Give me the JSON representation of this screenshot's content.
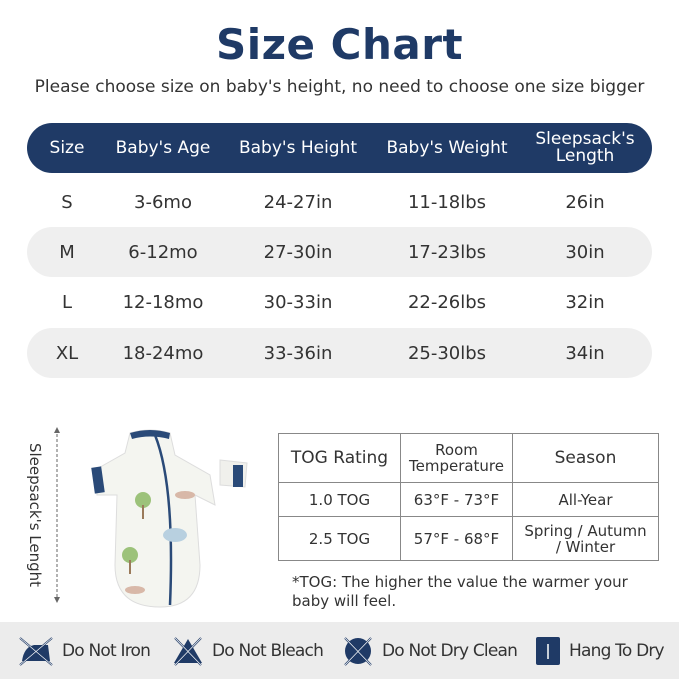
{
  "title": "Size Chart",
  "subtitle": "Please choose size on baby's height, no need to choose one size bigger",
  "size_table": {
    "headers": [
      "Size",
      "Baby's Age",
      "Baby's Height",
      "Baby's Weight",
      "Sleepsack's Length"
    ],
    "rows": [
      [
        "S",
        "3-6mo",
        "24-27in",
        "11-18lbs",
        "26in"
      ],
      [
        "M",
        "6-12mo",
        "27-30in",
        "17-23lbs",
        "30in"
      ],
      [
        "L",
        "12-18mo",
        "30-33in",
        "22-26lbs",
        "32in"
      ],
      [
        "XL",
        "18-24mo",
        "33-36in",
        "25-30lbs",
        "34in"
      ]
    ]
  },
  "measure_label": "Sleepsack's Lenght",
  "tog_table": {
    "headers": [
      "TOG Rating",
      "Room Temperature",
      "Season"
    ],
    "rows": [
      [
        "1.0 TOG",
        "63°F - 73°F",
        "All-Year"
      ],
      [
        "2.5 TOG",
        "57°F - 68°F",
        "Spring / Autumn / Winter"
      ]
    ]
  },
  "note": "*TOG: The higher the value the warmer your baby will feel.",
  "care": [
    {
      "icon": "no-iron-icon",
      "label": "Do Not Iron"
    },
    {
      "icon": "no-bleach-icon",
      "label": "Do Not Bleach"
    },
    {
      "icon": "no-dry-clean-icon",
      "label": "Do Not Dry Clean"
    },
    {
      "icon": "hang-dry-icon",
      "label": "Hang To Dry"
    }
  ],
  "colors": {
    "navy": "#1f3a66",
    "band": "#efefef"
  }
}
